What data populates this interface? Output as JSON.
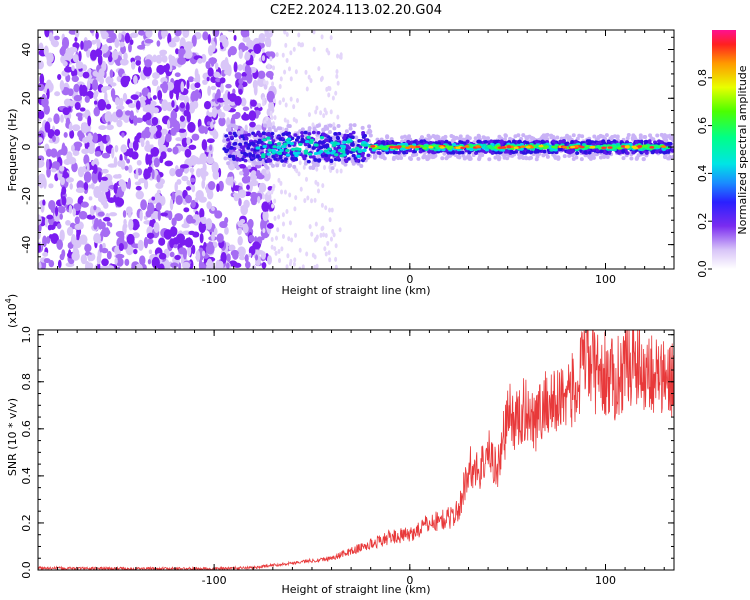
{
  "title": "C2E2.2024.113.02.20.G04",
  "chart_data": [
    {
      "type": "heatmap",
      "xlabel": "Height of straight line (km)",
      "ylabel": "Frequency (Hz)",
      "xlim": [
        -190,
        135
      ],
      "ylim": [
        -50,
        48
      ],
      "x_ticks": [
        -100,
        0,
        100
      ],
      "y_ticks": [
        -40,
        -20,
        0,
        20,
        40
      ],
      "colorbar": {
        "label": "Normalized spectral amplitude",
        "range": [
          0.0,
          1.0
        ],
        "ticks": [
          "0.0",
          "0.2",
          "0.4",
          "0.6",
          "0.8"
        ]
      },
      "description_values": {
        "noise_region_x": [
          -190,
          -70
        ],
        "signal_center_frequency": 0,
        "signal_onset_x": -95
      }
    },
    {
      "type": "line",
      "xlabel": "Height of straight line (km)",
      "ylabel": "SNR (10 * v/v)",
      "y_multiplier": "(x10",
      "y_multiplier_exp": "4",
      "y_multiplier_close": ")",
      "xlim": [
        -190,
        135
      ],
      "ylim": [
        0,
        1.02
      ],
      "x_ticks": [
        -100,
        0,
        100
      ],
      "y_ticks": [
        0.0,
        0.2,
        0.4,
        0.6,
        0.8,
        1.0
      ],
      "y_tick_labels": [
        "0.0",
        "0.2",
        "0.4",
        "0.6",
        "0.8",
        "1.0"
      ],
      "series": [
        {
          "color": "#e8393a",
          "x": [
            -190,
            -150,
            -100,
            -80,
            -60,
            -40,
            -30,
            -20,
            -10,
            0,
            10,
            20,
            25,
            30,
            35,
            40,
            45,
            50,
            55,
            60,
            65,
            70,
            75,
            80,
            85,
            90,
            95,
            100,
            105,
            110,
            115,
            120,
            125,
            130,
            135
          ],
          "y": [
            0.008,
            0.006,
            0.005,
            0.01,
            0.03,
            0.05,
            0.08,
            0.11,
            0.14,
            0.15,
            0.2,
            0.22,
            0.25,
            0.44,
            0.42,
            0.5,
            0.43,
            0.66,
            0.63,
            0.69,
            0.64,
            0.72,
            0.7,
            0.78,
            0.74,
            0.92,
            0.84,
            0.83,
            0.8,
            0.88,
            0.9,
            0.86,
            0.84,
            0.8,
            0.82
          ]
        }
      ]
    }
  ]
}
